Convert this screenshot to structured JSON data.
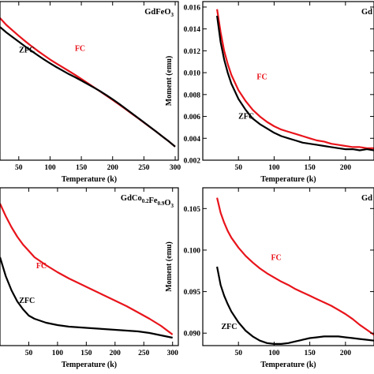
{
  "colors": {
    "fc": "#e8141b",
    "zfc": "#000000",
    "axis": "#000000"
  },
  "chart_data": [
    {
      "panel": "top-left",
      "type": "line",
      "title": "GdFeO3",
      "title_rich": [
        {
          "t": "GdFeO"
        },
        {
          "t": "3",
          "sub": true
        }
      ],
      "xlabel": "Temperature (k)",
      "ylabel": "",
      "xlim": [
        20,
        305
      ],
      "ylim": [
        0,
        1
      ],
      "xticks": [
        50,
        100,
        150,
        200,
        250,
        300
      ],
      "xtick_labels": [
        "50",
        "100",
        "150",
        "200",
        "250",
        "300"
      ],
      "yticks": [],
      "ytick_labels": [],
      "series": [
        {
          "name": "FC",
          "color": "#e8141b",
          "x": [
            20,
            30,
            40,
            50,
            60,
            70,
            80,
            90,
            100,
            110,
            120,
            130,
            140,
            150,
            160,
            170,
            180,
            190,
            200,
            210,
            220,
            230,
            240,
            250,
            260,
            270,
            280,
            290,
            300
          ],
          "y": [
            0.896,
            0.853,
            0.818,
            0.784,
            0.751,
            0.72,
            0.69,
            0.662,
            0.635,
            0.61,
            0.586,
            0.562,
            0.538,
            0.512,
            0.486,
            0.46,
            0.434,
            0.407,
            0.38,
            0.352,
            0.324,
            0.295,
            0.266,
            0.237,
            0.208,
            0.179,
            0.148,
            0.118,
            0.085
          ]
        },
        {
          "name": "ZFC",
          "color": "#000000",
          "x": [
            20,
            30,
            40,
            50,
            60,
            70,
            80,
            90,
            100,
            110,
            120,
            130,
            140,
            150,
            160,
            170,
            180,
            190,
            200,
            210,
            220,
            230,
            240,
            250,
            260,
            270,
            280,
            290,
            300
          ],
          "y": [
            0.84,
            0.806,
            0.776,
            0.747,
            0.718,
            0.69,
            0.662,
            0.636,
            0.611,
            0.587,
            0.565,
            0.543,
            0.523,
            0.502,
            0.48,
            0.458,
            0.435,
            0.41,
            0.384,
            0.356,
            0.327,
            0.298,
            0.268,
            0.239,
            0.209,
            0.179,
            0.148,
            0.118,
            0.085
          ]
        }
      ],
      "labels": [
        {
          "text": "FC",
          "x": 148,
          "y": 0.69,
          "color": "#e8141b"
        },
        {
          "text": "ZFC",
          "x": 63,
          "y": 0.68,
          "color": "#000000"
        }
      ]
    },
    {
      "panel": "top-right",
      "type": "line",
      "title": "Gd",
      "title_rich": [
        {
          "t": "Gd"
        }
      ],
      "xlabel": "Temperature (k)",
      "ylabel": "Moment (emu)",
      "xlim": [
        0,
        240
      ],
      "ylim": [
        0.002,
        0.0165
      ],
      "xticks": [
        50,
        100,
        150,
        200
      ],
      "xtick_labels": [
        "50",
        "100",
        "150",
        "200"
      ],
      "yticks": [
        0.002,
        0.004,
        0.006,
        0.008,
        0.01,
        0.012,
        0.014,
        0.016
      ],
      "ytick_labels": [
        "0.002",
        "0.004",
        "0.006",
        "0.008",
        "0.010",
        "0.012",
        "0.014",
        "0.016"
      ],
      "series": [
        {
          "name": "FC",
          "color": "#e8141b",
          "x": [
            20,
            25,
            30,
            35,
            40,
            50,
            60,
            70,
            80,
            90,
            100,
            110,
            120,
            130,
            140,
            150,
            160,
            170,
            180,
            190,
            200,
            210,
            220,
            230,
            240
          ],
          "y": [
            0.0158,
            0.0137,
            0.012,
            0.0108,
            0.0098,
            0.0084,
            0.0074,
            0.0066,
            0.006,
            0.0055,
            0.0051,
            0.0048,
            0.0046,
            0.0044,
            0.0042,
            0.004,
            0.0038,
            0.0037,
            0.0035,
            0.0034,
            0.0033,
            0.0032,
            0.0032,
            0.0031,
            0.0031
          ]
        },
        {
          "name": "ZFC",
          "color": "#000000",
          "x": [
            20,
            25,
            30,
            35,
            40,
            50,
            60,
            70,
            80,
            90,
            100,
            110,
            120,
            130,
            140,
            150,
            160,
            170,
            180,
            190,
            200,
            210,
            220,
            230,
            240
          ],
          "y": [
            0.0152,
            0.0128,
            0.0112,
            0.01,
            0.009,
            0.0076,
            0.0066,
            0.0058,
            0.0053,
            0.0049,
            0.0045,
            0.0042,
            0.004,
            0.0038,
            0.0036,
            0.0035,
            0.0034,
            0.0033,
            0.0032,
            0.0031,
            0.003,
            0.003,
            0.0029,
            0.003,
            0.0029
          ]
        }
      ],
      "labels": [
        {
          "text": "FC",
          "x": 83,
          "y": 0.0094,
          "color": "#e8141b"
        },
        {
          "text": "ZFC",
          "x": 61,
          "y": 0.0058,
          "color": "#000000"
        }
      ]
    },
    {
      "panel": "bottom-left",
      "type": "line",
      "title": "GdCo0.2Fe0.9O3",
      "title_rich": [
        {
          "t": "GdCo"
        },
        {
          "t": "0.2",
          "sub": true
        },
        {
          "t": "Fe"
        },
        {
          "t": "0.9",
          "sub": true
        },
        {
          "t": "O"
        },
        {
          "t": "3",
          "sub": true
        }
      ],
      "xlabel": "Temperature (k)",
      "ylabel": "",
      "xlim": [
        0,
        310
      ],
      "ylim": [
        0,
        1
      ],
      "xticks": [
        50,
        100,
        150,
        200,
        250,
        300
      ],
      "xtick_labels": [
        "50",
        "100",
        "150",
        "200",
        "250",
        "300"
      ],
      "yticks": [],
      "ytick_labels": [],
      "series": [
        {
          "name": "FC",
          "color": "#e8141b",
          "x": [
            0,
            10,
            20,
            30,
            40,
            50,
            60,
            80,
            100,
            120,
            140,
            160,
            180,
            200,
            220,
            240,
            260,
            280,
            300
          ],
          "y": [
            0.9,
            0.82,
            0.75,
            0.69,
            0.64,
            0.6,
            0.56,
            0.51,
            0.465,
            0.425,
            0.39,
            0.355,
            0.32,
            0.285,
            0.25,
            0.21,
            0.17,
            0.125,
            0.07
          ]
        },
        {
          "name": "ZFC",
          "color": "#000000",
          "x": [
            0,
            10,
            20,
            30,
            40,
            50,
            60,
            80,
            100,
            120,
            140,
            160,
            180,
            200,
            220,
            240,
            260,
            280,
            300
          ],
          "y": [
            0.56,
            0.44,
            0.35,
            0.28,
            0.23,
            0.19,
            0.17,
            0.145,
            0.13,
            0.12,
            0.115,
            0.11,
            0.105,
            0.1,
            0.095,
            0.09,
            0.08,
            0.065,
            0.05
          ]
        }
      ],
      "labels": [
        {
          "text": "FC",
          "x": 72,
          "y": 0.49,
          "color": "#e8141b"
        },
        {
          "text": "ZFC",
          "x": 47,
          "y": 0.27,
          "color": "#000000"
        }
      ]
    },
    {
      "panel": "bottom-right",
      "type": "line",
      "title": "Gd",
      "title_rich": [
        {
          "t": "Gd"
        }
      ],
      "xlabel": "Temperature (k)",
      "ylabel": "Moment (emu)",
      "xlim": [
        0,
        240
      ],
      "ylim": [
        0.0885,
        0.1075
      ],
      "xticks": [
        50,
        100,
        150,
        200
      ],
      "xtick_labels": [
        "50",
        "100",
        "150",
        "200"
      ],
      "yticks": [
        0.09,
        0.095,
        0.1,
        0.105
      ],
      "ytick_labels": [
        "0.090",
        "0.095",
        "0.100",
        "0.105"
      ],
      "series": [
        {
          "name": "FC",
          "color": "#e8141b",
          "x": [
            20,
            25,
            30,
            35,
            40,
            50,
            60,
            70,
            80,
            90,
            100,
            110,
            120,
            130,
            140,
            150,
            160,
            170,
            180,
            190,
            200,
            210,
            220,
            230,
            240
          ],
          "y": [
            0.1063,
            0.1045,
            0.1033,
            0.1023,
            0.1015,
            0.1003,
            0.0993,
            0.0985,
            0.0978,
            0.0972,
            0.0967,
            0.0962,
            0.0958,
            0.0953,
            0.0949,
            0.0945,
            0.0941,
            0.0937,
            0.0933,
            0.0928,
            0.0923,
            0.0917,
            0.091,
            0.0904,
            0.0898
          ]
        },
        {
          "name": "ZFC",
          "color": "#000000",
          "x": [
            20,
            25,
            30,
            35,
            40,
            50,
            60,
            70,
            80,
            90,
            100,
            110,
            120,
            130,
            140,
            150,
            160,
            170,
            180,
            190,
            200,
            210,
            220,
            230,
            240
          ],
          "y": [
            0.098,
            0.0958,
            0.0945,
            0.0935,
            0.0926,
            0.0913,
            0.0903,
            0.0896,
            0.0891,
            0.0888,
            0.0887,
            0.0887,
            0.0888,
            0.089,
            0.0892,
            0.0894,
            0.0895,
            0.0896,
            0.0896,
            0.0896,
            0.0895,
            0.0894,
            0.0893,
            0.0892,
            0.0891
          ]
        }
      ],
      "labels": [
        {
          "text": "FC",
          "x": 103,
          "y": 0.0988,
          "color": "#e8141b"
        },
        {
          "text": "ZFC",
          "x": 37,
          "y": 0.0905,
          "color": "#000000"
        }
      ]
    }
  ]
}
